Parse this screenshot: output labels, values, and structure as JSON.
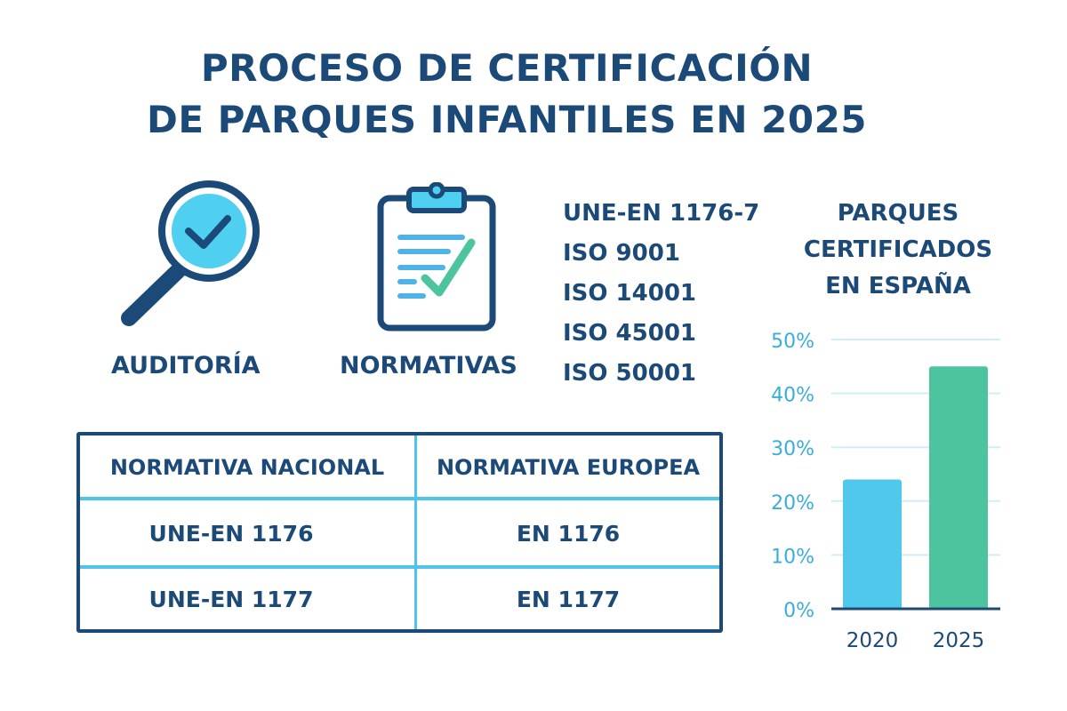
{
  "title": {
    "line1": "PROCESO DE CERTIFICACIÓN",
    "line2": "DE PARQUES INFANTILES EN 2025"
  },
  "icons": [
    {
      "name": "magnifier-check-icon",
      "label": "AUDITORÍA"
    },
    {
      "name": "clipboard-check-icon",
      "label": "NORMATIVAS"
    }
  ],
  "standards": [
    "UNE-EN 1176-7",
    "ISO 9001",
    "ISO 14001",
    "ISO 45001",
    "ISO 50001"
  ],
  "table": {
    "headers": [
      "NORMATIVA NACIONAL",
      "NORMATIVA EUROPEA"
    ],
    "rows": [
      [
        "UNE-EN 1176",
        "EN 1176"
      ],
      [
        "UNE-EN 1177",
        "EN 1177"
      ]
    ]
  },
  "colors": {
    "navy": "#1c4a78",
    "cyan": "#4fc3e8",
    "green": "#4dc4a0"
  },
  "chart_data": {
    "type": "bar",
    "title": "PARQUES CERTIFICADOS EN ESPAÑA",
    "title_lines": [
      "PARQUES",
      "CERTIFICADOS",
      "EN ESPAÑA"
    ],
    "categories": [
      "2020",
      "2025"
    ],
    "values": [
      24,
      45
    ],
    "bar_colors": [
      "#4fc8ec",
      "#4dc4a0"
    ],
    "ylim": [
      0,
      50
    ],
    "yticks": [
      0,
      10,
      20,
      30,
      40,
      50
    ],
    "ytick_labels": [
      "0%",
      "10%",
      "20%",
      "30%",
      "40%",
      "50%"
    ],
    "grid": true,
    "legend": "none"
  }
}
